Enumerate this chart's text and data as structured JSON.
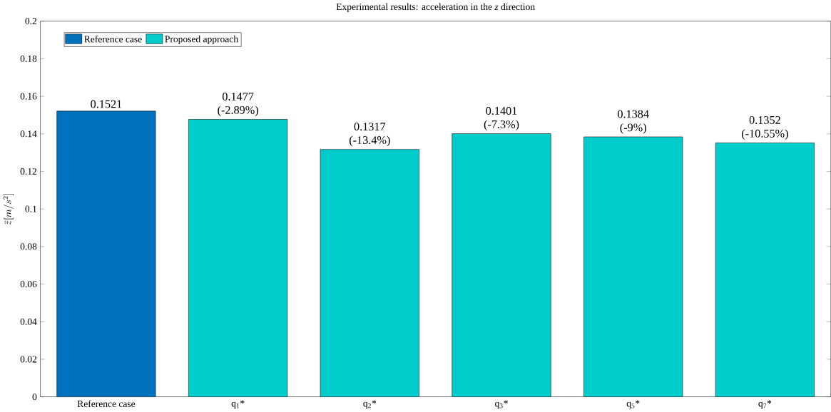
{
  "chart_data": {
    "type": "bar",
    "title": "Experimental results: acceleration in the *z* direction",
    "ylabel": "\\ddot{z}[m/s^2]",
    "categories": [
      "Reference case",
      "q$_{1}$*",
      "q$_{2}$*",
      "q$_{3}$*",
      "q$_{5}$*",
      "q$_{7}$*"
    ],
    "series": [
      {
        "name": "Reference case",
        "color": "#0072bd",
        "values": [
          0.1521,
          null,
          null,
          null,
          null,
          null
        ],
        "value_labels": [
          "0.1521",
          null,
          null,
          null,
          null,
          null
        ]
      },
      {
        "name": "Proposed approach",
        "color": "#00cccc",
        "values": [
          null,
          0.1477,
          0.1317,
          0.1401,
          0.1384,
          0.1352
        ],
        "value_labels": [
          null,
          "0.1477 (-2.89%)",
          "0.1317 (-13.4%)",
          "0.1401 (-7.3%)",
          "0.1384 (-9%)",
          "0.1352 (-10.55%)"
        ]
      }
    ],
    "ylim": [
      0,
      0.2
    ],
    "yticks": [
      0,
      0.02,
      0.04,
      0.06,
      0.08,
      0.1,
      0.12,
      0.14,
      0.16,
      0.18,
      0.2
    ],
    "legend": "top left",
    "grid": false
  }
}
